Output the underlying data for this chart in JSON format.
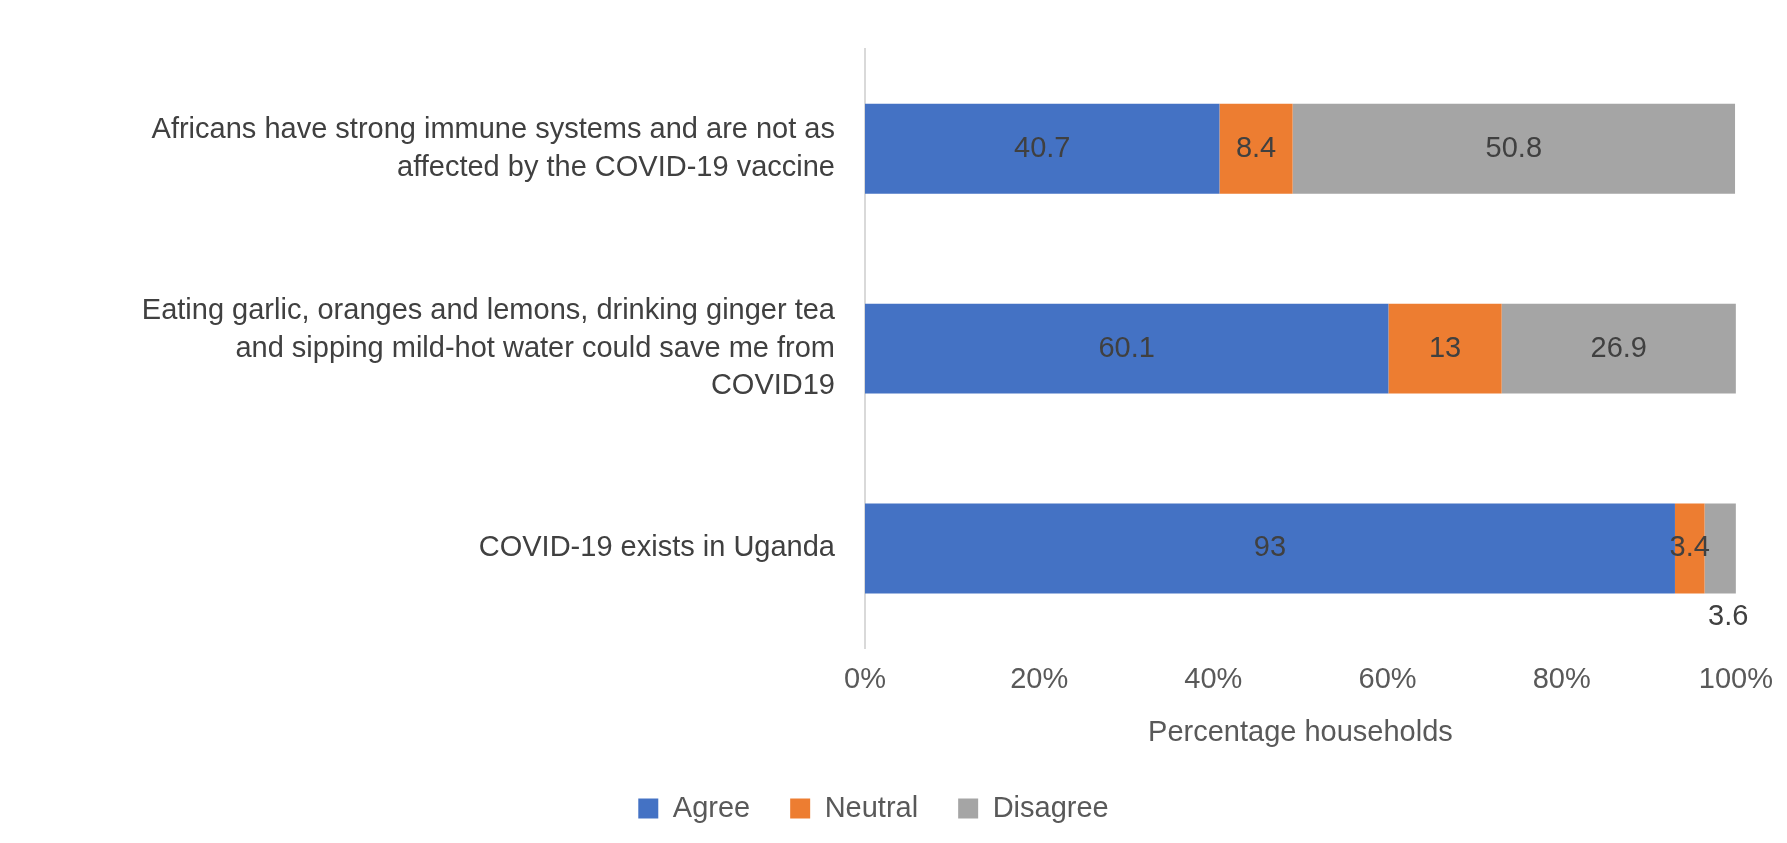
{
  "chart_data": {
    "type": "bar",
    "orientation": "horizontal",
    "stacked": true,
    "categories": [
      "Africans have strong immune systems and are not as affected by the COVID-19 vaccine",
      "Eating garlic, oranges and lemons, drinking ginger tea and sipping mild-hot water could save me from COVID19",
      "COVID-19 exists in Uganda"
    ],
    "series": [
      {
        "name": "Agree",
        "color": "#4472c4",
        "values": [
          40.7,
          60.1,
          93
        ]
      },
      {
        "name": "Neutral",
        "color": "#ed7d31",
        "values": [
          8.4,
          13,
          3.4
        ]
      },
      {
        "name": "Disagree",
        "color": "#a5a5a5",
        "values": [
          50.8,
          26.9,
          3.6
        ]
      }
    ],
    "xlabel": "Percentage households",
    "xlim": [
      0,
      100
    ],
    "xticks": [
      {
        "value": 0,
        "label": "0%"
      },
      {
        "value": 20,
        "label": "20%"
      },
      {
        "value": 40,
        "label": "40%"
      },
      {
        "value": 60,
        "label": "60%"
      },
      {
        "value": 80,
        "label": "80%"
      },
      {
        "value": 100,
        "label": "100%"
      }
    ],
    "data_labels": true,
    "grid": false,
    "legend": "bottom"
  }
}
